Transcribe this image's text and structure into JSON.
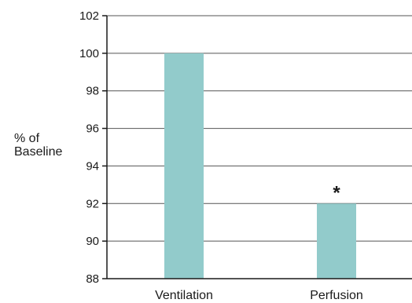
{
  "chart_data": {
    "type": "bar",
    "categories": [
      "Ventilation",
      "Perfusion"
    ],
    "values": [
      100,
      92
    ],
    "ylabel_lines": [
      "% of",
      "Baseline"
    ],
    "ylim": [
      88,
      102
    ],
    "yticks": [
      88,
      90,
      92,
      94,
      96,
      98,
      100,
      102
    ],
    "grid": true,
    "annotations": [
      {
        "category": "Perfusion",
        "text": "*"
      }
    ],
    "bar_color": "#92cbcb",
    "axis_color": "#1a1a1a",
    "grid_color": "#555555"
  }
}
